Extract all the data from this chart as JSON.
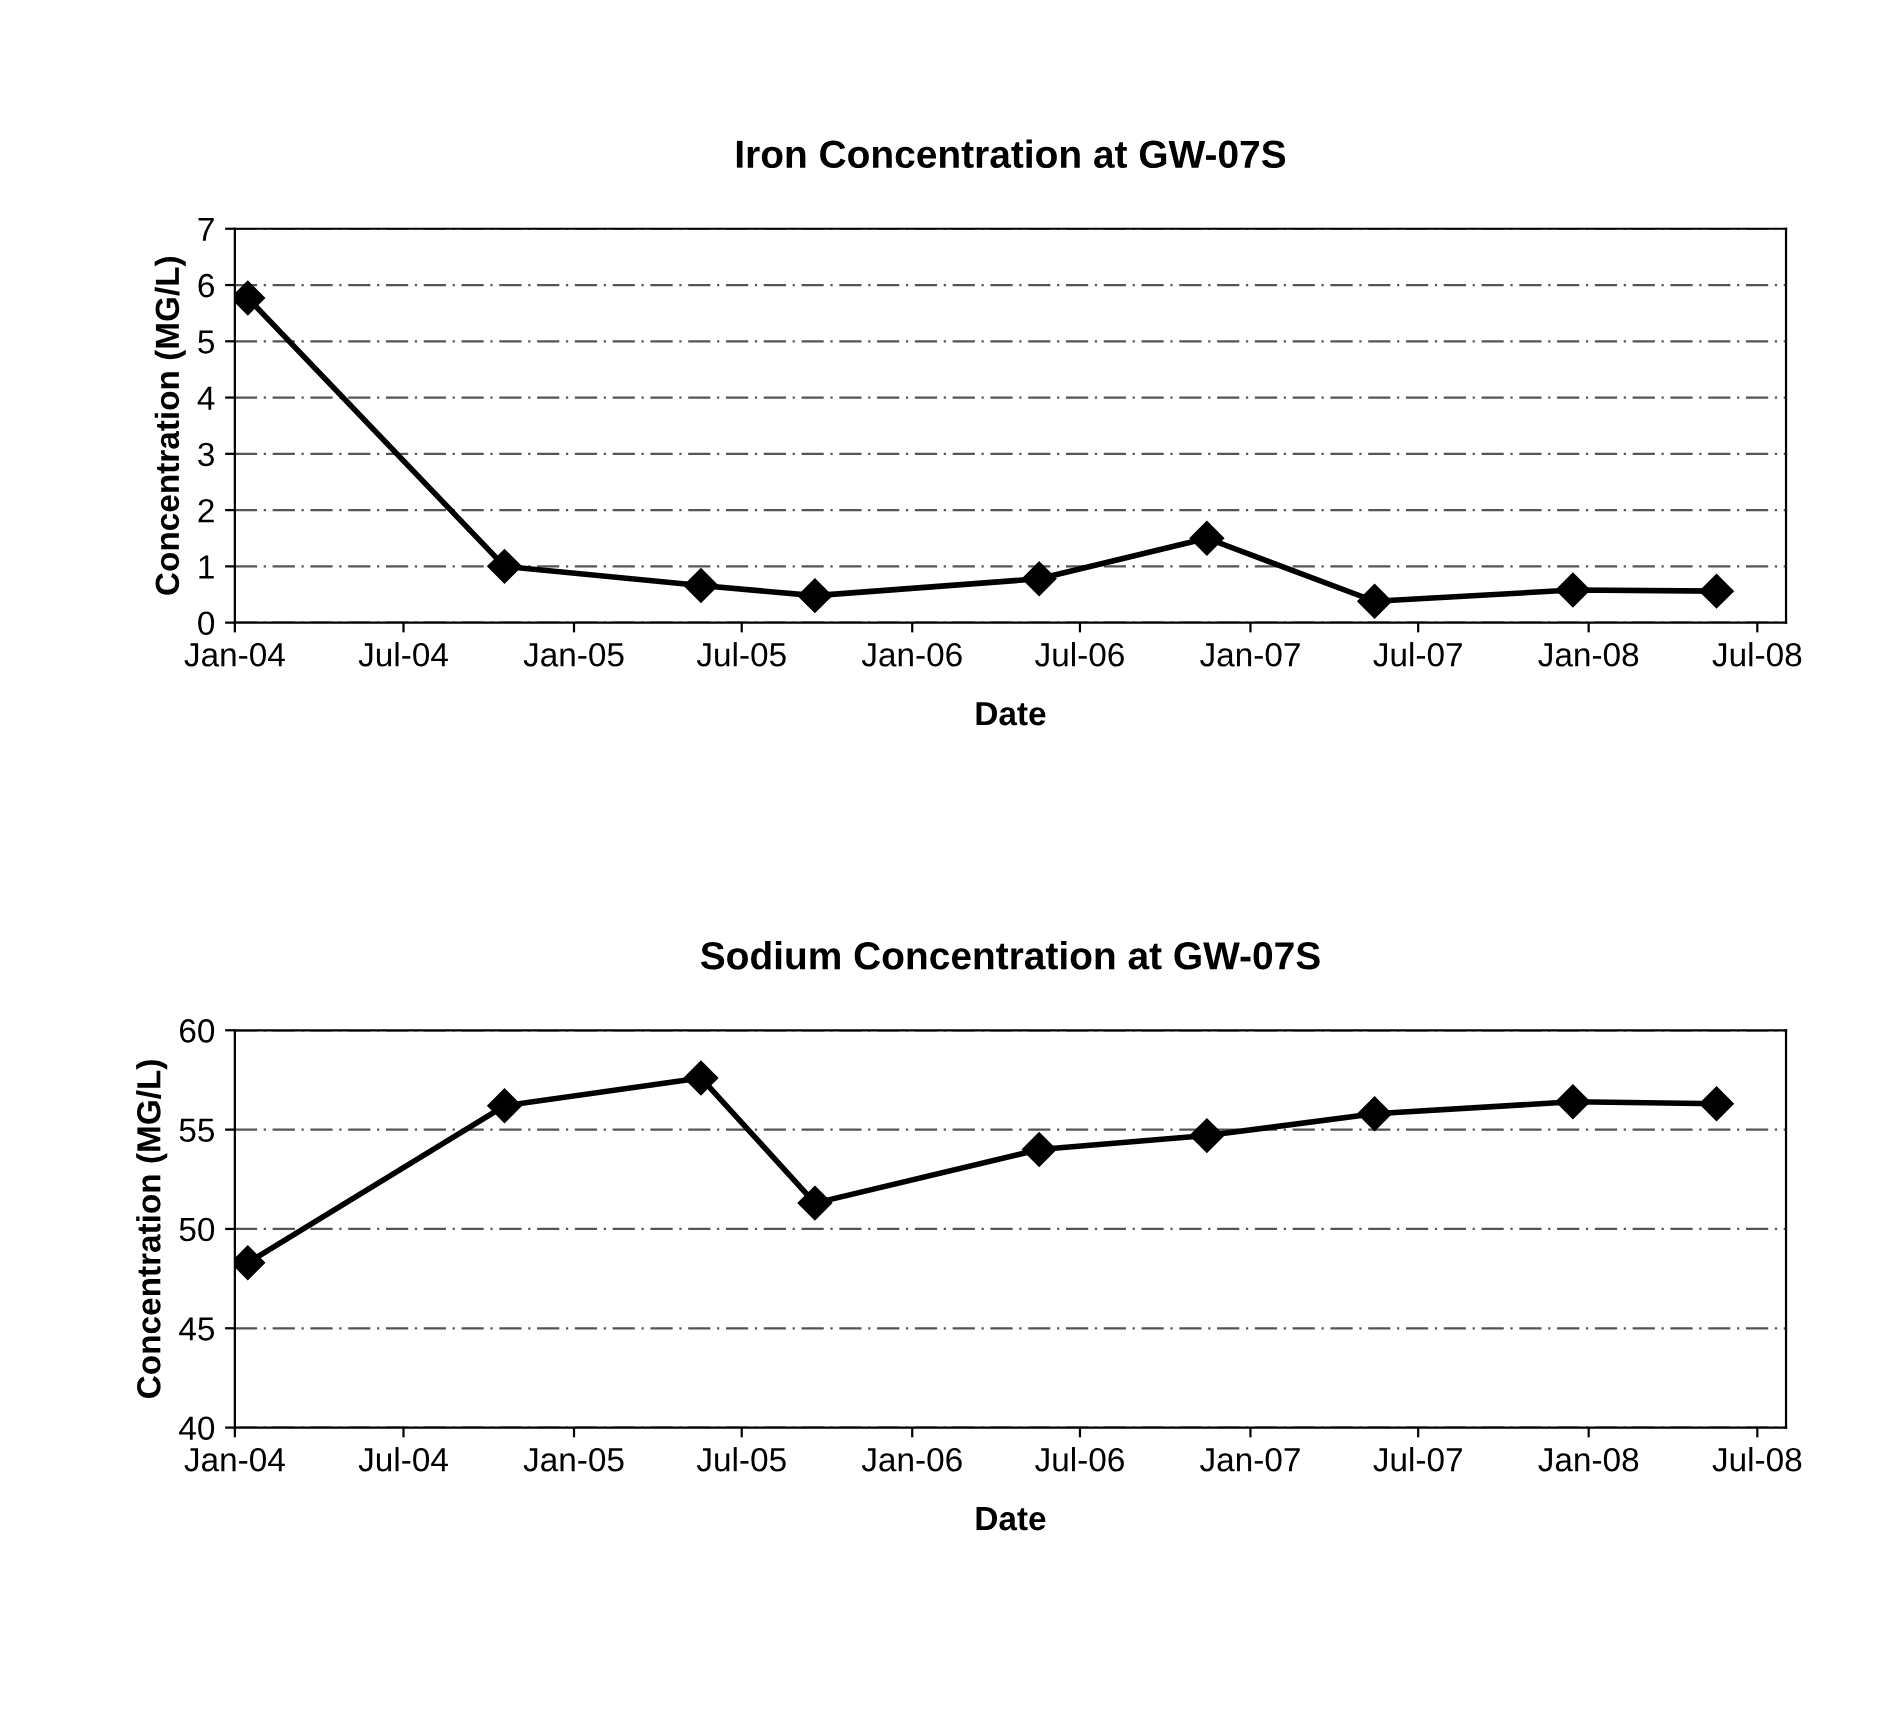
{
  "chart_data": [
    {
      "type": "line",
      "title": "Iron Concentration at GW-07S",
      "xlabel": "Date",
      "ylabel": "Concentration (MG/L)",
      "x": [
        "2004-01-15",
        "2004-10-18",
        "2005-05-18",
        "2005-09-18",
        "2006-05-18",
        "2006-11-15",
        "2007-05-15",
        "2007-12-15",
        "2008-05-18"
      ],
      "series": [
        {
          "color": "#000000",
          "values": [
            5.77,
            1.0,
            0.66,
            0.48,
            0.78,
            1.5,
            0.38,
            0.58,
            0.56
          ]
        }
      ],
      "xlim": [
        "2004-01-01",
        "2008-08-01"
      ],
      "xticks": [
        {
          "value": "2004-01-01",
          "label": "Jan-04"
        },
        {
          "value": "2004-07-01",
          "label": "Jul-04"
        },
        {
          "value": "2005-01-01",
          "label": "Jan-05"
        },
        {
          "value": "2005-07-01",
          "label": "Jul-05"
        },
        {
          "value": "2006-01-01",
          "label": "Jan-06"
        },
        {
          "value": "2006-07-01",
          "label": "Jul-06"
        },
        {
          "value": "2007-01-01",
          "label": "Jan-07"
        },
        {
          "value": "2007-07-01",
          "label": "Jul-07"
        },
        {
          "value": "2008-01-01",
          "label": "Jan-08"
        },
        {
          "value": "2008-07-01",
          "label": "Jul-08"
        }
      ],
      "ylim": [
        0,
        7
      ],
      "yticks": [
        0,
        1,
        2,
        3,
        4,
        5,
        6,
        7
      ],
      "grid": "y",
      "marker": "diamond",
      "line_style": "solid",
      "legend": false
    },
    {
      "type": "line",
      "title": "Sodium Concentration at GW-07S",
      "xlabel": "Date",
      "ylabel": "Concentration (MG/L)",
      "x": [
        "2004-01-15",
        "2004-10-18",
        "2005-05-18",
        "2005-09-18",
        "2006-05-18",
        "2006-11-15",
        "2007-05-15",
        "2007-12-15",
        "2008-05-18"
      ],
      "series": [
        {
          "color": "#000000",
          "values": [
            48.3,
            56.2,
            57.6,
            51.3,
            54.0,
            54.7,
            55.8,
            56.4,
            56.3
          ]
        }
      ],
      "xlim": [
        "2004-01-01",
        "2008-08-01"
      ],
      "xticks": [
        {
          "value": "2004-01-01",
          "label": "Jan-04"
        },
        {
          "value": "2004-07-01",
          "label": "Jul-04"
        },
        {
          "value": "2005-01-01",
          "label": "Jan-05"
        },
        {
          "value": "2005-07-01",
          "label": "Jul-05"
        },
        {
          "value": "2006-01-01",
          "label": "Jan-06"
        },
        {
          "value": "2006-07-01",
          "label": "Jul-06"
        },
        {
          "value": "2007-01-01",
          "label": "Jan-07"
        },
        {
          "value": "2007-07-01",
          "label": "Jul-07"
        },
        {
          "value": "2008-01-01",
          "label": "Jan-08"
        },
        {
          "value": "2008-07-01",
          "label": "Jul-08"
        }
      ],
      "ylim": [
        40,
        60
      ],
      "yticks": [
        40,
        45,
        50,
        55,
        60
      ],
      "grid": "y",
      "marker": "diamond",
      "line_style": "solid",
      "legend": false
    }
  ]
}
